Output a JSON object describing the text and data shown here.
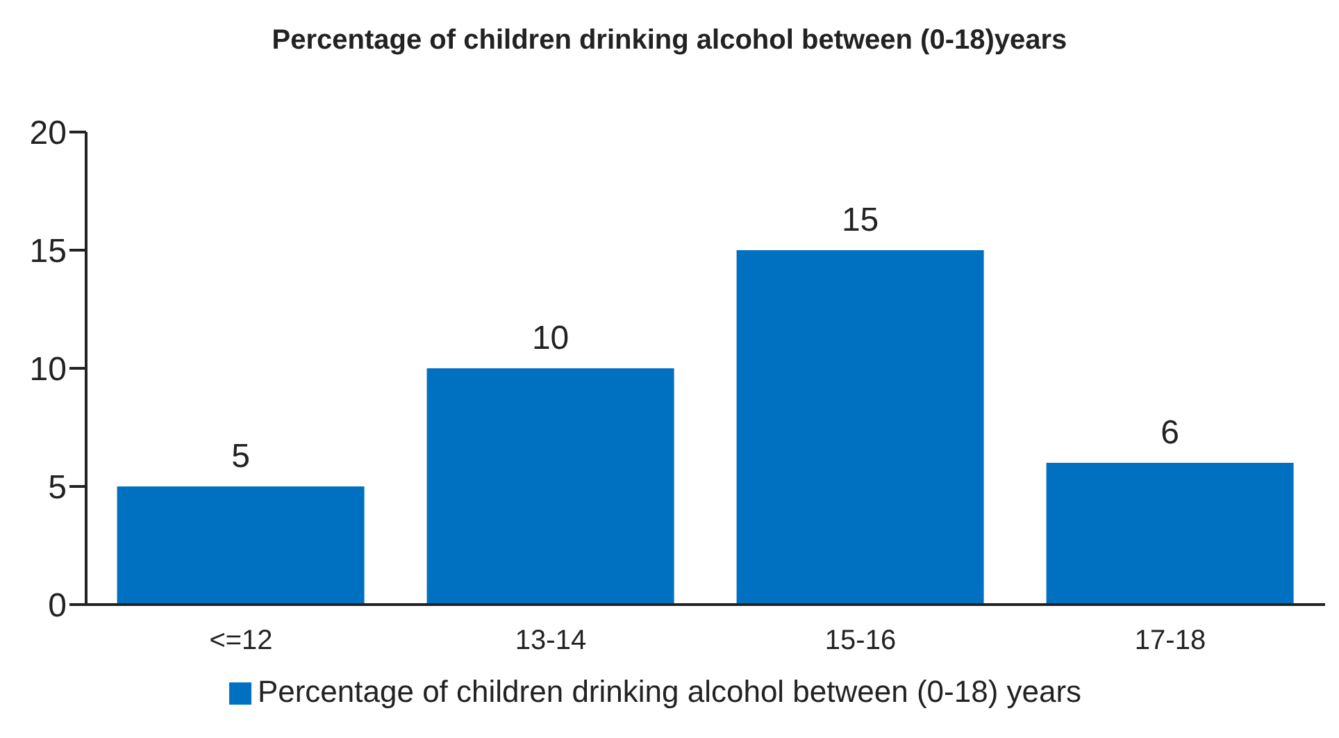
{
  "chart_data": {
    "type": "bar",
    "title": "Percentage of children drinking alcohol between (0-18)years",
    "categories": [
      "<=12",
      "13-14",
      "15-16",
      "17-18"
    ],
    "series": [
      {
        "name": "Percentage of children drinking alcohol between (0-18) years",
        "color": "#0070c0",
        "values": [
          5,
          10,
          15,
          6
        ]
      }
    ],
    "ylim": [
      0,
      20
    ],
    "yticks": [
      0,
      5,
      10,
      15,
      20
    ],
    "grid": false,
    "legend": "bottom",
    "data_labels": true
  }
}
